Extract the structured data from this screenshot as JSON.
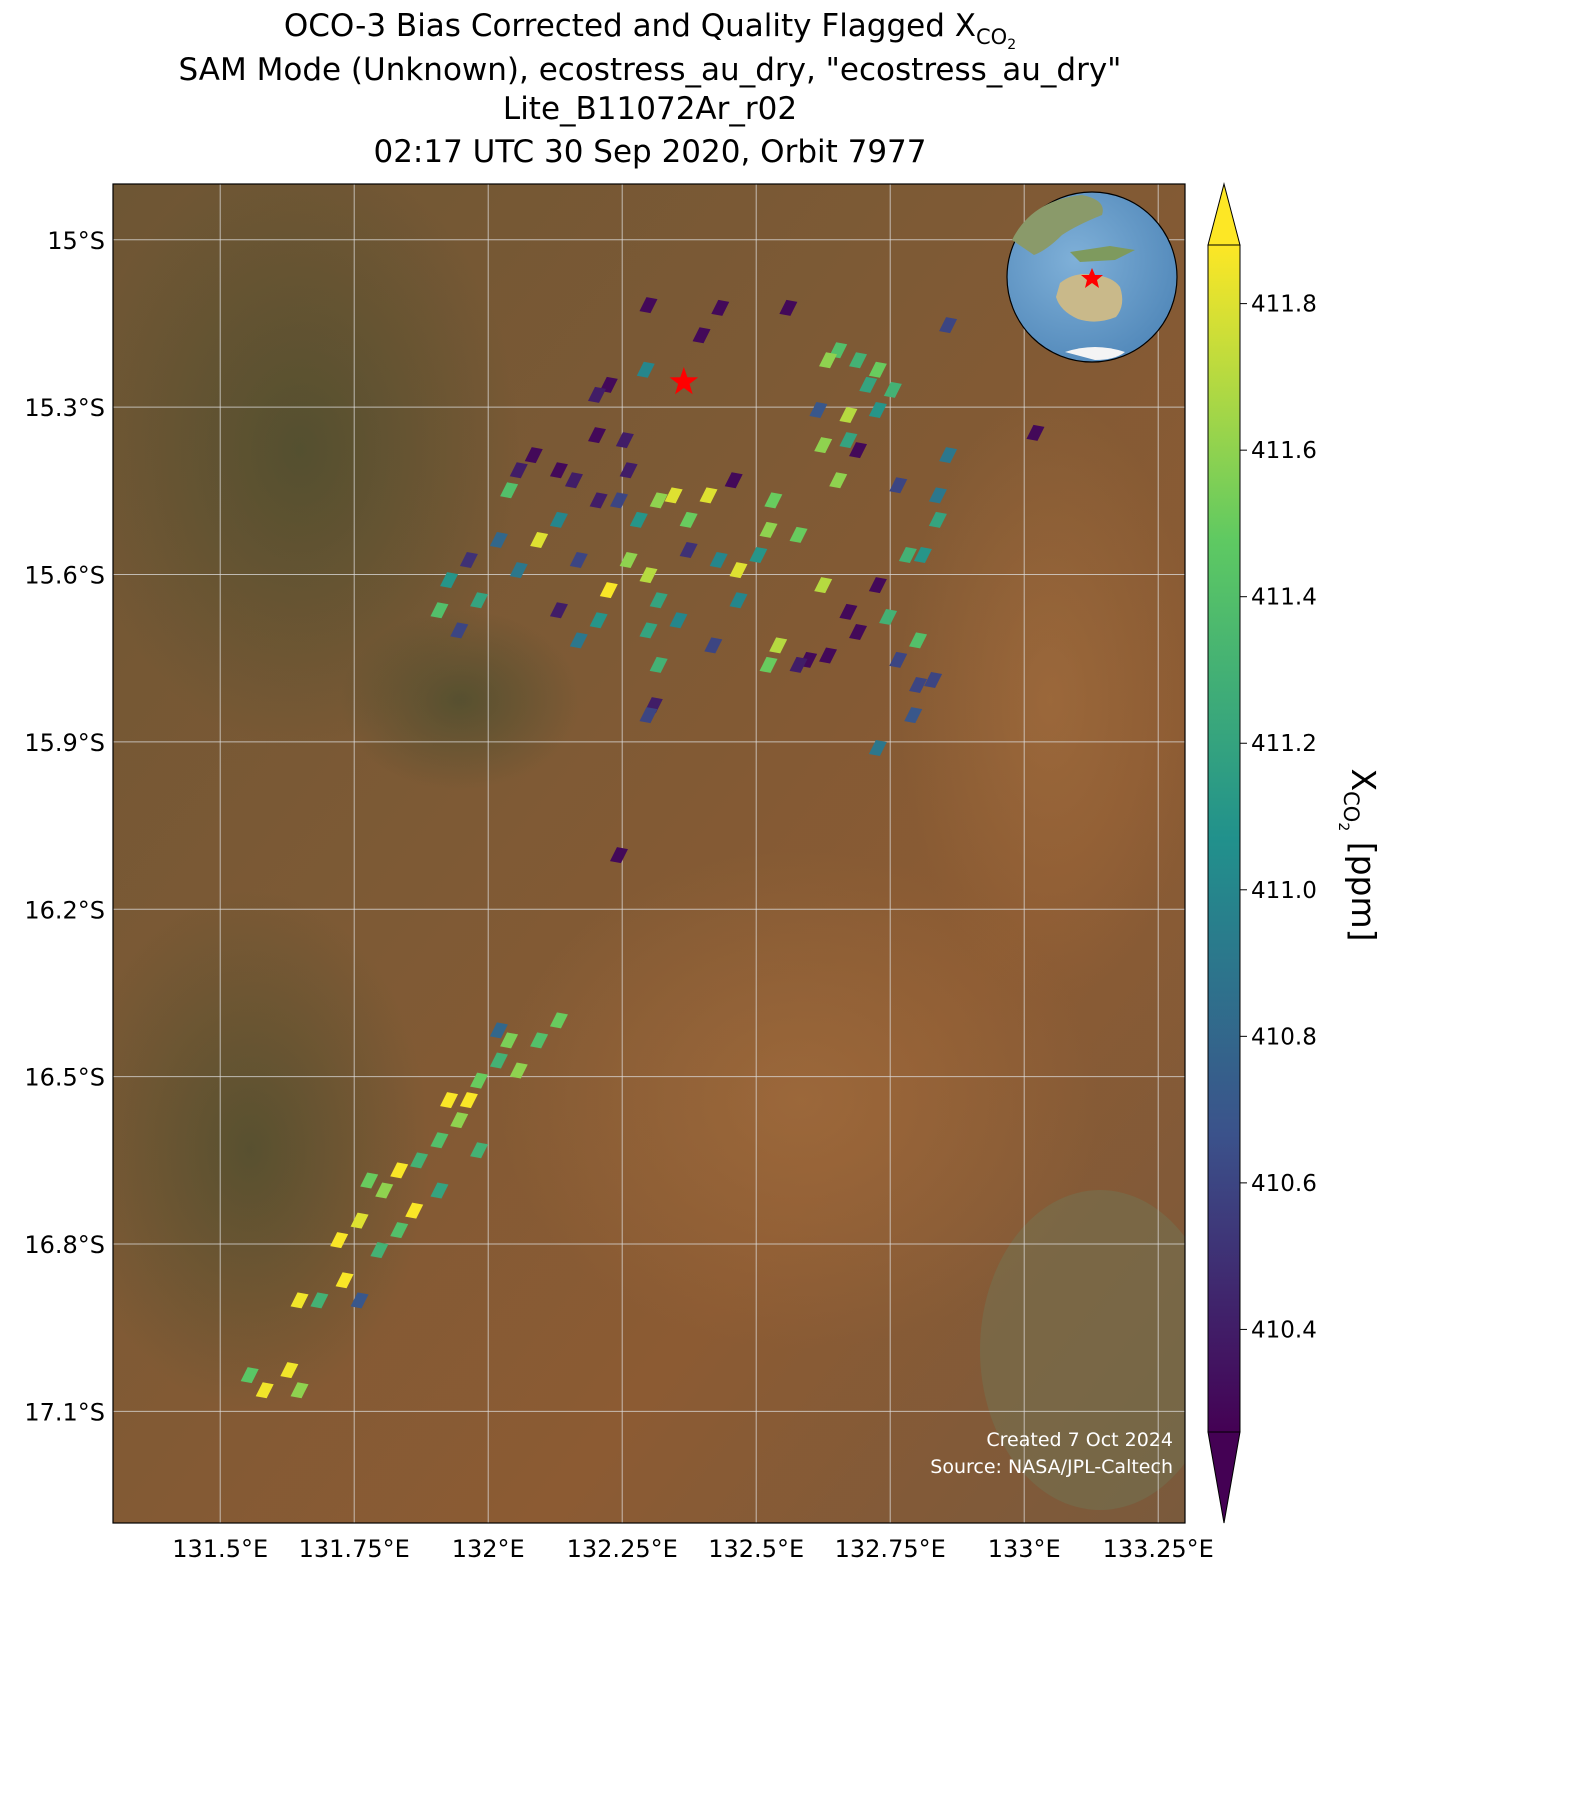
{
  "chart_data": {
    "type": "map",
    "title_lines": [
      "OCO-3 Bias Corrected and Quality Flagged ",
      "SAM Mode (Unknown), ecostress_au_dry, \"ecostress_au_dry\"",
      "Lite_B11072Ar_r02",
      "02:17 UTC 30 Sep 2020, Orbit 7977"
    ],
    "symbol": {
      "main": "X",
      "sub": "CO",
      "subsub": "2"
    },
    "colorbar_unit": " [ppm]",
    "credits": [
      "Created 7 Oct 2024",
      "Source: NASA/JPL-Caltech"
    ],
    "xlim": [
      131.3,
      133.3
    ],
    "ylim": [
      -17.3,
      -14.9
    ],
    "xticks": [
      {
        "value": 131.5,
        "label": "131.5°E"
      },
      {
        "value": 131.75,
        "label": "131.75°E"
      },
      {
        "value": 132,
        "label": "132°E"
      },
      {
        "value": 132.25,
        "label": "132.25°E"
      },
      {
        "value": 132.5,
        "label": "132.5°E"
      },
      {
        "value": 132.75,
        "label": "132.75°E"
      },
      {
        "value": 133,
        "label": "133°E"
      },
      {
        "value": 133.25,
        "label": "133.25°E"
      }
    ],
    "yticks": [
      {
        "value": -15,
        "label": "15°S"
      },
      {
        "value": -15.3,
        "label": "15.3°S"
      },
      {
        "value": -15.6,
        "label": "15.6°S"
      },
      {
        "value": -15.9,
        "label": "15.9°S"
      },
      {
        "value": -16.2,
        "label": "16.2°S"
      },
      {
        "value": -16.5,
        "label": "16.5°S"
      },
      {
        "value": -16.8,
        "label": "16.8°S"
      },
      {
        "value": -17.1,
        "label": "17.1°S"
      }
    ],
    "grid": true,
    "clim": [
      410.26,
      411.88
    ],
    "cticks": [
      410.4,
      410.6,
      410.8,
      {
        "value": 411,
        "label": "411.0"
      },
      411.2,
      411.4,
      411.6,
      411.8
    ],
    "colormap": "viridis",
    "target": {
      "x": 132.365,
      "y": -15.255,
      "color": "#ff0000"
    },
    "points": {
      "x": [
        131.583,
        131.629,
        131.555,
        131.648,
        131.648,
        131.685,
        131.722,
        131.76,
        131.797,
        131.732,
        131.76,
        131.834,
        131.778,
        131.834,
        131.871,
        131.909,
        131.946,
        131.909,
        131.964,
        131.983,
        132.02,
        132.039,
        132.057,
        132.095,
        132.132,
        132.02,
        131.983,
        131.927,
        131.862,
        131.806,
        132.299,
        132.433,
        132.56,
        132.398,
        132.294,
        132.225,
        132.203,
        132.255,
        132.203,
        132.085,
        132.057,
        132.039,
        132.132,
        132.16,
        132.206,
        132.262,
        132.318,
        132.346,
        132.411,
        132.458,
        132.374,
        132.281,
        132.244,
        132.132,
        132.095,
        132.02,
        131.964,
        131.927,
        131.909,
        131.946,
        131.983,
        132.057,
        132.169,
        132.225,
        132.262,
        132.299,
        132.318,
        132.374,
        132.43,
        132.467,
        132.504,
        132.467,
        132.523,
        132.579,
        132.532,
        132.355,
        132.299,
        132.206,
        132.169,
        132.132,
        132.318,
        132.42,
        132.309,
        132.299,
        132.541,
        132.523,
        132.597,
        132.634,
        132.579,
        132.625,
        132.727,
        132.672,
        132.69,
        132.746,
        132.765,
        132.802,
        132.83,
        132.802,
        132.793,
        132.727,
        132.244,
        132.653,
        132.69,
        132.727,
        132.709,
        132.755,
        132.727,
        132.672,
        132.634,
        132.616,
        132.672,
        132.625,
        132.69,
        132.653,
        132.858,
        133.021,
        132.858,
        132.839,
        132.765,
        132.839,
        132.811,
        132.783
      ],
      "y": [
        -17.062,
        -17.026,
        -17.035,
        -17.062,
        -16.901,
        -16.901,
        -16.793,
        -16.758,
        -16.811,
        -16.865,
        -16.901,
        -16.775,
        -16.686,
        -16.668,
        -16.65,
        -16.614,
        -16.578,
        -16.704,
        -16.542,
        -16.507,
        -16.471,
        -16.435,
        -16.489,
        -16.435,
        -16.399,
        -16.417,
        -16.632,
        -16.542,
        -16.74,
        -16.704,
        -15.117,
        -15.122,
        -15.122,
        -15.171,
        -15.233,
        -15.26,
        -15.278,
        -15.359,
        -15.35,
        -15.386,
        -15.413,
        -15.449,
        -15.413,
        -15.431,
        -15.467,
        -15.413,
        -15.467,
        -15.458,
        -15.458,
        -15.431,
        -15.502,
        -15.502,
        -15.467,
        -15.502,
        -15.538,
        -15.538,
        -15.574,
        -15.61,
        -15.664,
        -15.7,
        -15.646,
        -15.592,
        -15.574,
        -15.628,
        -15.574,
        -15.601,
        -15.646,
        -15.556,
        -15.574,
        -15.592,
        -15.565,
        -15.646,
        -15.52,
        -15.529,
        -15.467,
        -15.682,
        -15.7,
        -15.682,
        -15.718,
        -15.664,
        -15.762,
        -15.727,
        -15.834,
        -15.852,
        -15.727,
        -15.762,
        -15.753,
        -15.745,
        -15.762,
        -15.619,
        -15.619,
        -15.667,
        -15.703,
        -15.676,
        -15.753,
        -15.718,
        -15.789,
        -15.798,
        -15.852,
        -15.911,
        -16.103,
        -15.198,
        -15.216,
        -15.233,
        -15.26,
        -15.269,
        -15.305,
        -15.314,
        -15.216,
        -15.305,
        -15.359,
        -15.368,
        -15.377,
        -15.431,
        -15.153,
        -15.346,
        -15.386,
        -15.458,
        -15.44,
        -15.502,
        -15.565,
        -15.565
      ],
      "values": [
        411.85,
        411.85,
        411.45,
        411.6,
        411.85,
        411.3,
        411.87,
        411.8,
        411.3,
        411.87,
        410.7,
        411.4,
        411.5,
        411.87,
        411.3,
        411.4,
        411.6,
        411.2,
        411.87,
        411.5,
        411.3,
        411.55,
        411.6,
        411.4,
        411.5,
        410.8,
        411.3,
        411.87,
        411.87,
        411.6,
        410.3,
        410.3,
        410.3,
        410.3,
        411.0,
        410.3,
        410.4,
        410.4,
        410.3,
        410.3,
        410.4,
        411.4,
        410.3,
        410.4,
        410.4,
        410.4,
        411.6,
        411.8,
        411.8,
        410.3,
        411.5,
        411.1,
        410.6,
        411.0,
        411.8,
        410.8,
        410.5,
        411.1,
        411.4,
        410.6,
        411.2,
        410.9,
        410.6,
        411.87,
        411.6,
        411.7,
        411.2,
        410.5,
        411.0,
        411.8,
        411.1,
        411.0,
        411.6,
        411.5,
        411.5,
        411.0,
        411.2,
        411.1,
        410.9,
        410.4,
        411.3,
        410.6,
        410.4,
        410.6,
        411.7,
        411.5,
        410.3,
        410.3,
        410.4,
        411.7,
        410.3,
        410.3,
        410.3,
        411.3,
        410.6,
        411.4,
        410.6,
        410.6,
        410.7,
        410.9,
        410.3,
        411.4,
        411.3,
        411.5,
        411.2,
        411.3,
        411.1,
        411.7,
        411.6,
        410.7,
        411.2,
        411.6,
        410.3,
        411.6,
        410.6,
        410.3,
        410.9,
        410.9,
        410.6,
        411.2,
        411.1,
        411.3
      ]
    }
  }
}
